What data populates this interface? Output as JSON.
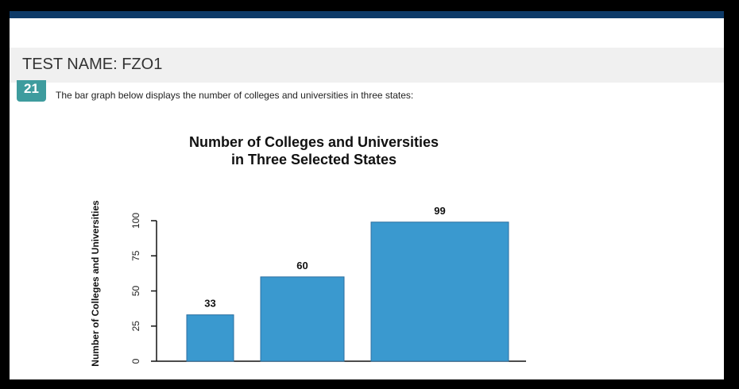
{
  "header": {
    "test_name": "TEST NAME:  FZO1"
  },
  "question": {
    "number": "21",
    "text": "The bar graph below displays the number of colleges and universities in three states:"
  },
  "colors": {
    "top_bar": "#0d3a68",
    "badge": "#3e9c9e",
    "bar": "#3a99cf",
    "bar_border": "#2c6fa0"
  },
  "chart_data": {
    "type": "bar",
    "title": [
      "Number of Colleges and Universities",
      "in Three Selected States"
    ],
    "ylabel": "Number of Colleges and Universities",
    "xlabel": "",
    "categories": [
      "",
      "",
      ""
    ],
    "values": [
      33,
      60,
      99
    ],
    "yticks": [
      0,
      25,
      50,
      75,
      100
    ],
    "ylim": [
      0,
      100
    ],
    "grid": false,
    "legend": "none"
  }
}
